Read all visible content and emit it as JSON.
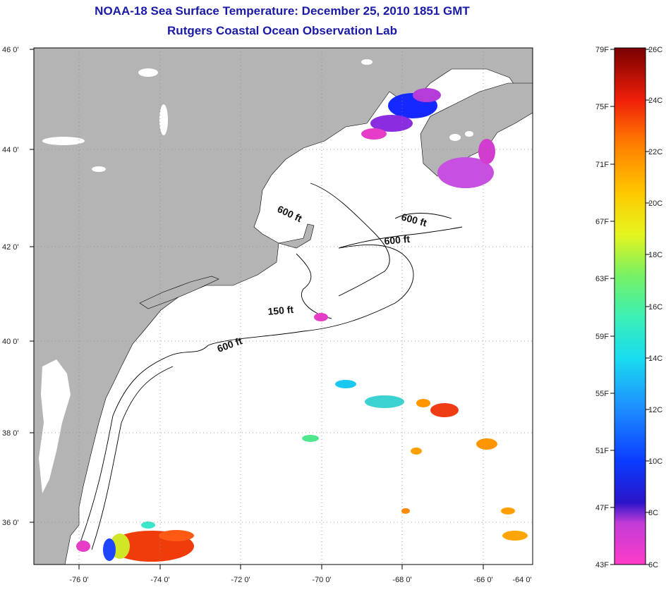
{
  "title": "NOAA-18 Sea Surface Temperature:  December 25, 2010 1851 GMT",
  "subtitle": "Rutgers Coastal Ocean Observation Lab",
  "map": {
    "lat_labels": [
      "46 0'",
      "44 0'",
      "42 0'",
      "40 0'",
      "38 0'",
      "36 0'"
    ],
    "lon_labels": [
      "-76 0'",
      "-74 0'",
      "-72 0'",
      "-70 0'",
      "-68 0'",
      "-66 0'",
      "-64 0'"
    ],
    "depth_labels": [
      "600 ft",
      "600 ft",
      "600 ft",
      "150 ft",
      "600 ft"
    ],
    "colors": {
      "land": "#b4b4b4",
      "ocean": "#ffffff",
      "frame": "#000000"
    }
  },
  "colorbar": {
    "fahrenheit": [
      "79F",
      "75F",
      "71F",
      "67F",
      "63F",
      "59F",
      "55F",
      "51F",
      "47F",
      "43F"
    ],
    "celsius": [
      "26C",
      "24C",
      "22C",
      "20C",
      "18C",
      "16C",
      "14C",
      "12C",
      "10C",
      "8C",
      "6C"
    ]
  }
}
